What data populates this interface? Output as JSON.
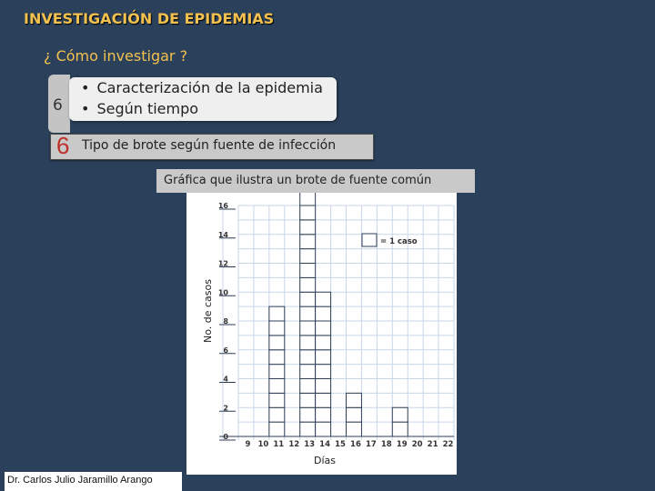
{
  "slide": {
    "title": "INVESTIGACIÓN DE EPIDEMIAS",
    "subtitle": "¿ Cómo investigar ?",
    "step_number": "6",
    "bullets": [
      "Caracterización de la epidemia",
      "Según tiempo"
    ],
    "sub_step_number": "6",
    "sub_step_text": "Tipo de brote según fuente de infección",
    "chart_caption": "Gráfica que ilustra un brote de  fuente común",
    "author": "Dr. Carlos Julio Jaramillo Arango",
    "colors": {
      "background": "#2b405b",
      "title": "#f2c14e",
      "step_accent": "#c0302a"
    }
  },
  "chart_data": {
    "type": "bar",
    "title": "",
    "xlabel": "Días",
    "ylabel": "No. de casos",
    "categories": [
      "9",
      "10",
      "11",
      "12",
      "13",
      "14",
      "15",
      "16",
      "17",
      "18",
      "19",
      "20",
      "21",
      "22"
    ],
    "values": [
      0,
      0,
      9,
      0,
      17,
      10,
      0,
      3,
      0,
      0,
      2,
      0,
      0,
      0
    ],
    "unit_legend": "= 1 caso",
    "y_ticks": [
      "0",
      "2",
      "4",
      "6",
      "8",
      "10",
      "12",
      "14",
      "16"
    ],
    "ylim": [
      0,
      16
    ]
  }
}
